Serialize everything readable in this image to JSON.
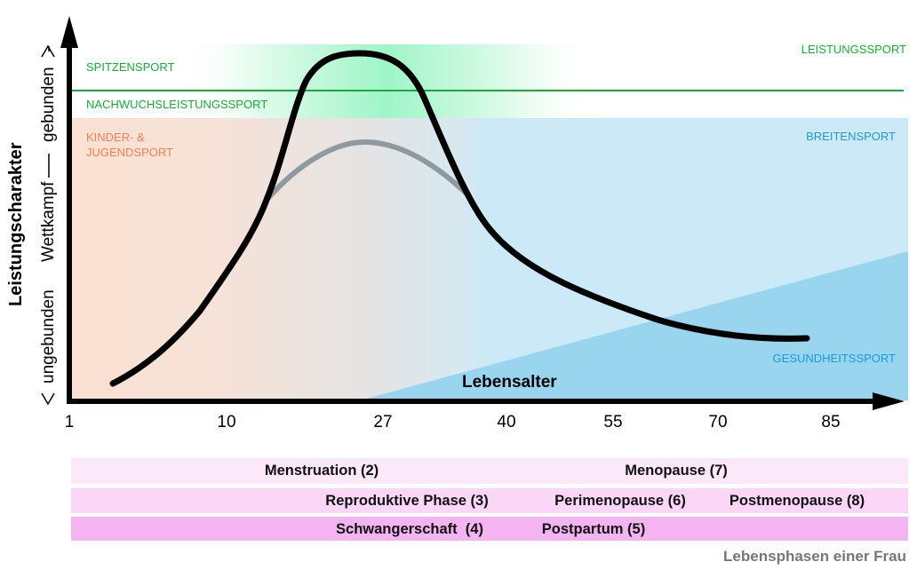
{
  "diagram": {
    "y_axis_title": "Leistungscharakter",
    "y_axis_top": "gebunden",
    "y_axis_mid": "Wettkampf",
    "y_axis_bottom": "ungebunden",
    "x_axis_title": "Lebensalter",
    "x_ticks": [
      "1",
      "10",
      "27",
      "40",
      "55",
      "70",
      "85"
    ],
    "zones": {
      "leistungssport": "LEISTUNGSSPORT",
      "spitzensport": "SPITZENSPORT",
      "nachwuchs": "NACHWUCHSLEISTUNGSSPORT",
      "kinder_line1": "KINDER- &",
      "kinder_line2": "JUGENDSPORT",
      "breitensport": "BREITENSPORT",
      "gesundheitssport": "GESUNDHEITSSPORT"
    },
    "colors": {
      "green": "#1aaa3a",
      "orange": "#f08050",
      "blue": "#1a9ad6",
      "peach": "#fbe1d3",
      "light_blue": "#cbe9f6",
      "dark_blue": "#9ad5f0",
      "mint": "#9ff5c8"
    }
  },
  "phases": {
    "row1": [
      "Menstruation (2)",
      "Menopause (7)"
    ],
    "row2": [
      "Reproduktive Phase (3)",
      "Perimenopause (6)",
      "Postmenopause (8)"
    ],
    "row3": [
      "Schwangerschaft  (4)",
      "Postpartum (5)"
    ],
    "caption": "Lebensphasen einer Frau"
  }
}
